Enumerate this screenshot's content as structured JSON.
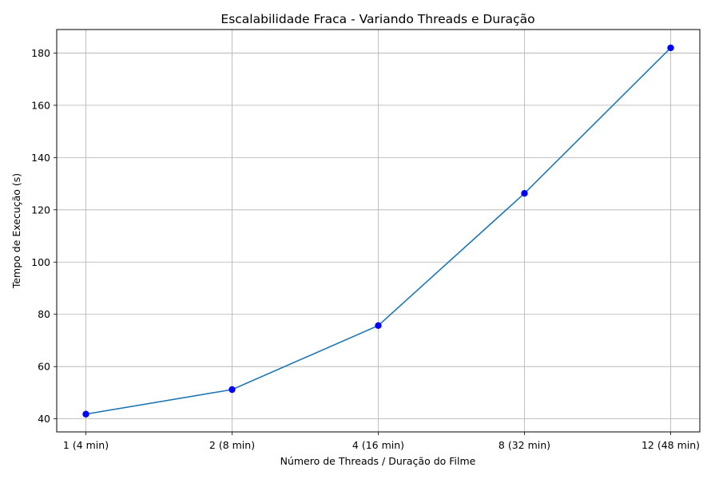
{
  "chart_data": {
    "type": "line",
    "title": "Escalabilidade Fraca - Variando Threads e Duração",
    "xlabel": "Número de Threads / Duração do Filme",
    "ylabel": "Tempo de Execução (s)",
    "categories": [
      "1 (4 min)",
      "2 (8 min)",
      "4 (16 min)",
      "8 (32 min)",
      "12 (48 min)"
    ],
    "values": [
      41.8,
      51.2,
      75.7,
      126.3,
      182.0
    ],
    "ylim": [
      35,
      189
    ],
    "yticks": [
      40,
      60,
      80,
      100,
      120,
      140,
      160,
      180
    ],
    "grid": true,
    "line_color": "#1f77b4",
    "marker_color": "#0000ff"
  }
}
